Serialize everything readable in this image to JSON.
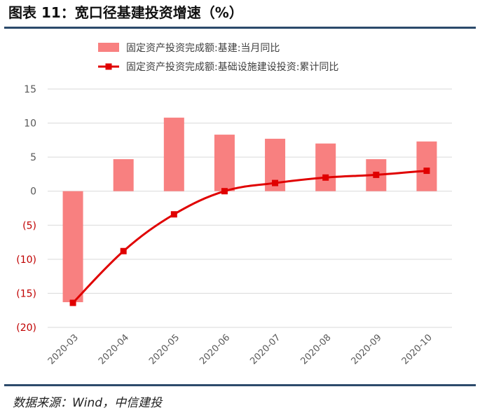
{
  "header": {
    "title": "图表 11：宽口径基建投资增速（%）"
  },
  "footer": {
    "source": "数据来源：Wind，中信建投"
  },
  "chart_data": {
    "type": "bar",
    "title": "图表 11：宽口径基建投资增速（%）",
    "xlabel": "",
    "ylabel": "",
    "ylim": [
      -20,
      15
    ],
    "yticks": [
      15,
      10,
      5,
      0,
      -5,
      -10,
      -15,
      -20
    ],
    "ytick_labels": [
      "15",
      "10",
      "5",
      "0",
      "(5)",
      "(10)",
      "(15)",
      "(20)"
    ],
    "negative_label_color": "#c00000",
    "categories": [
      "2020-03",
      "2020-04",
      "2020-05",
      "2020-06",
      "2020-07",
      "2020-08",
      "2020-09",
      "2020-10"
    ],
    "grid": true,
    "legend_position": "top",
    "series": [
      {
        "name": "固定资产投资完成额:基建:当月同比",
        "type": "bar",
        "color": "#f88080",
        "values": [
          -16.3,
          4.7,
          10.8,
          8.3,
          7.7,
          7.0,
          4.7,
          7.3
        ]
      },
      {
        "name": "固定资产投资完成额:基础设施建设投资:累计同比",
        "type": "line",
        "color": "#e00000",
        "values": [
          -16.4,
          -8.8,
          -3.4,
          0.0,
          1.2,
          2.0,
          2.4,
          3.0
        ]
      }
    ]
  }
}
